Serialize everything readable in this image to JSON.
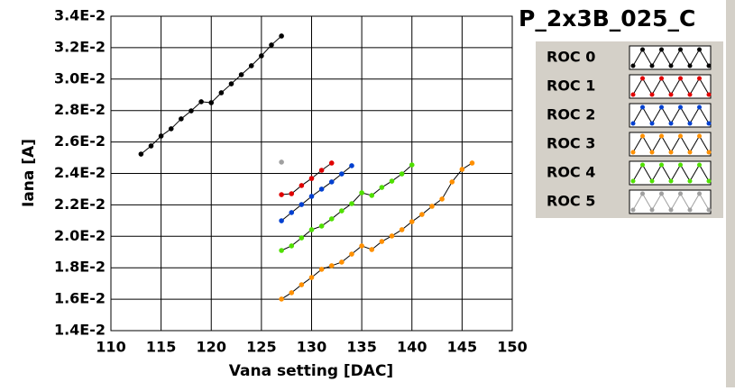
{
  "chart_data": {
    "type": "line",
    "title": "P_2x3B_025_C",
    "x_label": "Vana setting [DAC]",
    "y_label": "Iana [A]",
    "xlim": [
      110,
      150
    ],
    "xticks": [
      110,
      115,
      120,
      125,
      130,
      135,
      140,
      145,
      150
    ],
    "ylim": [
      0.014,
      0.034
    ],
    "yticks": [
      {
        "value": 0.014,
        "label": "1.4E-2"
      },
      {
        "value": 0.016,
        "label": "1.6E-2"
      },
      {
        "value": 0.018,
        "label": "1.8E-2"
      },
      {
        "value": 0.02,
        "label": "2.0E-2"
      },
      {
        "value": 0.022,
        "label": "2.2E-2"
      },
      {
        "value": 0.024,
        "label": "2.4E-2"
      },
      {
        "value": 0.026,
        "label": "2.6E-2"
      },
      {
        "value": 0.028,
        "label": "2.8E-2"
      },
      {
        "value": 0.03,
        "label": "3.0E-2"
      },
      {
        "value": 0.032,
        "label": "3.2E-2"
      },
      {
        "value": 0.034,
        "label": "3.4E-2"
      }
    ],
    "grid": true,
    "series": [
      {
        "name": "ROC 0",
        "color": "#000000",
        "x": [
          113,
          114,
          115,
          116,
          117,
          118,
          119,
          120,
          121,
          122,
          123,
          124,
          125,
          126,
          127
        ],
        "values": [
          0.02523,
          0.02575,
          0.02638,
          0.02684,
          0.02747,
          0.02798,
          0.02856,
          0.0285,
          0.02913,
          0.0297,
          0.03028,
          0.03085,
          0.03148,
          0.03217,
          0.03274
        ]
      },
      {
        "name": "ROC 1",
        "color": "#e00000",
        "x": [
          127,
          128,
          129,
          130,
          131,
          132
        ],
        "values": [
          0.02265,
          0.02271,
          0.02323,
          0.02368,
          0.0242,
          0.02466
        ]
      },
      {
        "name": "ROC 2",
        "color": "#0040d0",
        "x": [
          127,
          128,
          129,
          130,
          131,
          132,
          133,
          134
        ],
        "values": [
          0.02099,
          0.02151,
          0.02202,
          0.02254,
          0.023,
          0.02346,
          0.02397,
          0.02449
        ]
      },
      {
        "name": "ROC 3",
        "color": "#ff9000",
        "x": [
          127,
          128,
          129,
          130,
          131,
          132,
          133,
          134,
          135,
          136,
          137,
          138,
          139,
          140,
          141,
          142,
          143,
          144,
          145,
          146
        ],
        "values": [
          0.01601,
          0.01641,
          0.01692,
          0.01738,
          0.0179,
          0.01813,
          0.01836,
          0.01887,
          0.01939,
          0.01916,
          0.01967,
          0.02002,
          0.02042,
          0.02093,
          0.02139,
          0.02191,
          0.02237,
          0.02346,
          0.02426,
          0.02466
        ]
      },
      {
        "name": "ROC 4",
        "color": "#50e000",
        "x": [
          127,
          128,
          129,
          130,
          131,
          132,
          133,
          134,
          135,
          136,
          137,
          138,
          139,
          140
        ],
        "values": [
          0.0191,
          0.01939,
          0.0199,
          0.02042,
          0.02065,
          0.02111,
          0.02162,
          0.02208,
          0.02277,
          0.0226,
          0.02311,
          0.02351,
          0.02397,
          0.02454
        ]
      },
      {
        "name": "ROC 5",
        "color": "#a0a0a0",
        "x": [
          127
        ],
        "values": [
          0.02472
        ]
      }
    ]
  }
}
